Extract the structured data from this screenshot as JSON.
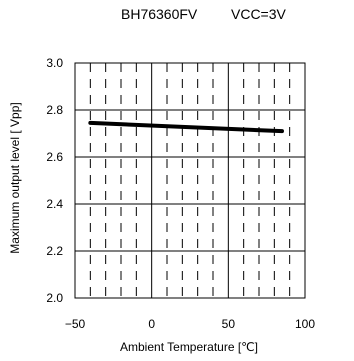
{
  "titles": {
    "device": "BH76360FV",
    "condition": "VCC=3V"
  },
  "chart_data": {
    "type": "line",
    "xlabel": "Ambient Temperature [℃]",
    "ylabel": "Maximum output level [ Vpp]",
    "xlim": [
      -50,
      100
    ],
    "ylim": [
      2.0,
      3.0
    ],
    "xticks": [
      "−50",
      "0",
      "50",
      "100"
    ],
    "yticks": [
      "2.0",
      "2.2",
      "2.4",
      "2.6",
      "2.8",
      "3.0"
    ],
    "grid": true,
    "series": [
      {
        "x": [
          -40,
          85
        ],
        "y": [
          2.745,
          2.71
        ],
        "color": "#000000"
      }
    ]
  }
}
